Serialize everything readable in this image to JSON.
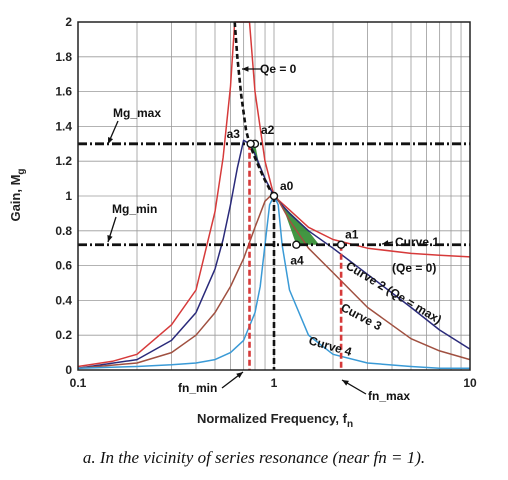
{
  "chart_data": {
    "type": "line",
    "xscale": "log",
    "xlim": [
      0.1,
      10
    ],
    "ylim": [
      0,
      2
    ],
    "xticks": [
      "0.1",
      "1",
      "10"
    ],
    "yticks": [
      "0",
      "0.2",
      "0.4",
      "0.6",
      "0.8",
      "1",
      "1.2",
      "1.4",
      "1.6",
      "1.8",
      "2"
    ],
    "xlabel": "Normalized Frequency, fn",
    "ylabel": "Gain, Mg",
    "grid": true,
    "colors": {
      "red": "#d63a3a",
      "navy": "#2a2a7a",
      "brown": "#a05040",
      "blue": "#3a9ad6",
      "green": "#2e8b2e",
      "dark": "#111111"
    },
    "series": [
      {
        "key": "c0",
        "name": "Curve 1",
        "color": "#d63a3a",
        "x": [
          0.1,
          0.15,
          0.2,
          0.3,
          0.4,
          0.5,
          0.55,
          0.6,
          0.63,
          0.65,
          0.66,
          0.75,
          0.8,
          0.9,
          1.0,
          1.2,
          1.5,
          2.0,
          3.0,
          5.0,
          7.0,
          10.0
        ],
        "y": [
          0.02,
          0.05,
          0.09,
          0.26,
          0.46,
          0.91,
          1.22,
          1.63,
          2.0,
          2.0,
          2.0,
          2.0,
          1.6,
          1.2,
          1.0,
          0.92,
          0.82,
          0.75,
          0.7,
          0.67,
          0.66,
          0.65
        ]
      },
      {
        "key": "c1",
        "name": "Curve 2",
        "color": "#2a2a7a",
        "x": [
          0.1,
          0.2,
          0.3,
          0.4,
          0.5,
          0.55,
          0.6,
          0.65,
          0.7,
          0.75,
          0.8,
          0.9,
          1.0,
          1.2,
          1.5,
          2.0,
          3.0,
          5.0,
          7.0,
          10.0
        ],
        "y": [
          0.01,
          0.06,
          0.17,
          0.33,
          0.58,
          0.75,
          0.95,
          1.16,
          1.32,
          1.3,
          1.24,
          1.1,
          1.0,
          0.9,
          0.8,
          0.7,
          0.55,
          0.36,
          0.23,
          0.12
        ]
      },
      {
        "key": "c2",
        "name": "Curve 3",
        "color": "#a05040",
        "x": [
          0.1,
          0.2,
          0.3,
          0.4,
          0.5,
          0.6,
          0.7,
          0.8,
          0.9,
          1.0,
          1.2,
          1.5,
          2.0,
          3.0,
          5.0,
          7.0,
          10.0
        ],
        "y": [
          0.01,
          0.04,
          0.1,
          0.2,
          0.33,
          0.48,
          0.64,
          0.82,
          0.97,
          1.02,
          0.86,
          0.7,
          0.56,
          0.36,
          0.18,
          0.11,
          0.06
        ]
      },
      {
        "key": "c3",
        "name": "Curve 4",
        "color": "#3a9ad6",
        "x": [
          0.1,
          0.2,
          0.3,
          0.4,
          0.5,
          0.6,
          0.7,
          0.8,
          0.85,
          0.9,
          0.95,
          1.0,
          1.05,
          1.1,
          1.2,
          1.5,
          2.0,
          3.0,
          5.0,
          7.0,
          10.0
        ],
        "y": [
          0.01,
          0.02,
          0.03,
          0.04,
          0.06,
          0.1,
          0.17,
          0.33,
          0.48,
          0.72,
          0.95,
          1.0,
          0.95,
          0.72,
          0.46,
          0.2,
          0.09,
          0.04,
          0.02,
          0.01,
          0.01
        ]
      },
      {
        "key": "locus",
        "name": "",
        "color": "#111111",
        "dashed": true,
        "x": [
          0.63,
          0.65,
          0.68,
          0.72,
          0.75,
          0.8,
          0.85,
          0.9,
          0.95,
          1.0
        ],
        "y": [
          2.0,
          1.8,
          1.58,
          1.38,
          1.3,
          1.22,
          1.15,
          1.09,
          1.04,
          1.0
        ]
      }
    ],
    "hlines": [
      {
        "key": "hmax",
        "y": 1.3,
        "label": "Mg_max"
      },
      {
        "key": "hmin",
        "y": 0.72,
        "label": "Mg_min"
      }
    ],
    "vlines": [
      {
        "key": "fmin",
        "x": 0.75,
        "label": "fn_min",
        "color": "#d63a3a",
        "ymax": 1.3
      },
      {
        "key": "fone",
        "x": 1.0,
        "label": "",
        "color": "#111111",
        "ymax": 1.0
      },
      {
        "key": "fmax",
        "x": 2.2,
        "label": "fn_max",
        "color": "#d63a3a",
        "ymax": 0.72
      }
    ],
    "points": [
      {
        "key": "a0",
        "label": "a0",
        "x": 1.0,
        "y": 1.0
      },
      {
        "key": "a1",
        "label": "a1",
        "x": 2.2,
        "y": 0.72
      },
      {
        "key": "a2",
        "label": "a2",
        "x": 0.8,
        "y": 1.3
      },
      {
        "key": "a3",
        "label": "a3",
        "x": 0.76,
        "y": 1.3
      },
      {
        "key": "a4",
        "label": "a4",
        "x": 1.3,
        "y": 0.72
      }
    ],
    "shaded": [
      {
        "key": "sh1",
        "color": "#2e8b2e",
        "x": [
          0.76,
          0.8,
          0.85,
          0.8
        ],
        "y": [
          1.3,
          1.3,
          1.15,
          1.22
        ]
      },
      {
        "key": "sh2",
        "color": "#2e8b2e",
        "x": [
          1.1,
          1.3,
          1.7,
          1.45
        ],
        "y": [
          0.95,
          0.72,
          0.72,
          0.82
        ]
      }
    ],
    "annotations": {
      "qe0_top": "Qe = 0",
      "mg_max": "Mg_max",
      "mg_min": "Mg_min",
      "curve1": "Curve 1",
      "curve1_q": "(Qe = 0)",
      "curve2": "Curve 2 (Qe = max)",
      "curve3": "Curve 3",
      "curve4": "Curve 4",
      "fn_min": "fn_min",
      "fn_max": "fn_max"
    }
  },
  "caption": "a. In the vicinity of series resonance (near fn = 1)."
}
